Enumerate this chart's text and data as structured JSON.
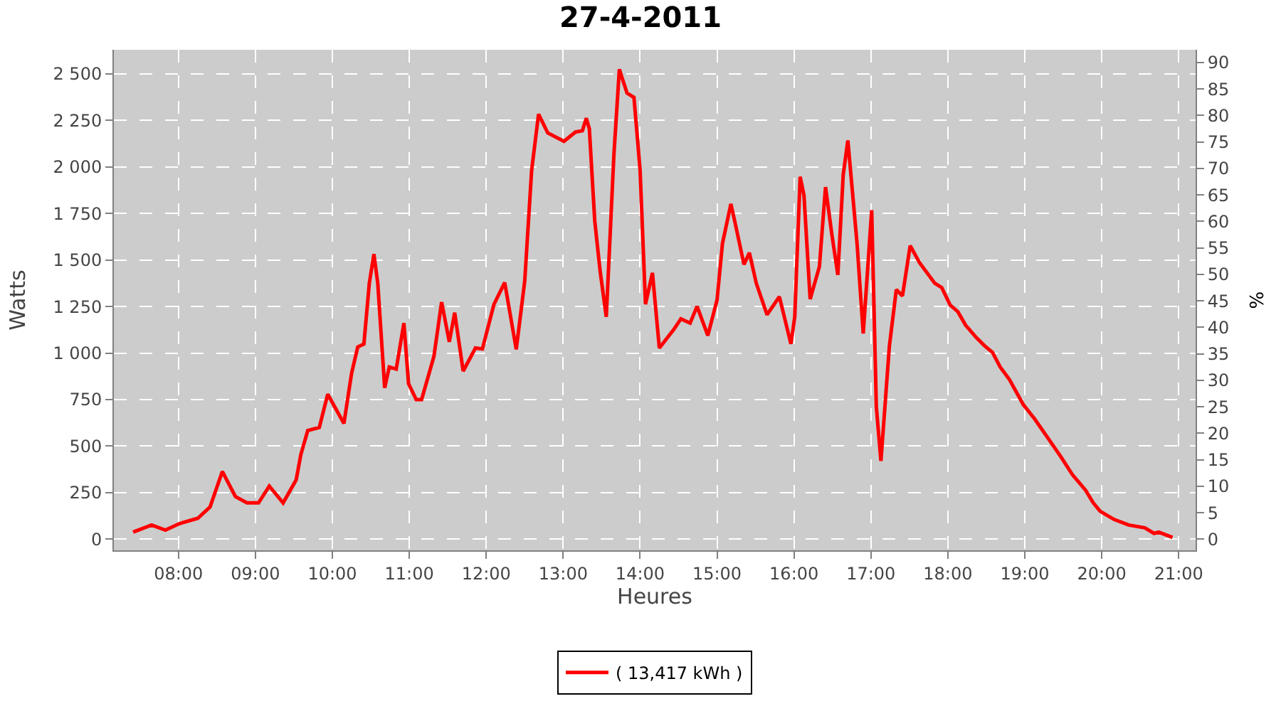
{
  "chart_data": {
    "type": "line",
    "title": "27-4-2011",
    "xlabel": "Heures",
    "ylabel": "Watts",
    "y2label": "%",
    "x": [
      7.41,
      7.65,
      7.83,
      8.01,
      8.25,
      8.41,
      8.57,
      8.74,
      8.89,
      9.04,
      9.18,
      9.36,
      9.53,
      9.59,
      9.68,
      9.83,
      9.94,
      10.15,
      10.25,
      10.33,
      10.41,
      10.48,
      10.54,
      10.59,
      10.68,
      10.74,
      10.83,
      10.93,
      10.99,
      11.09,
      11.16,
      11.32,
      11.42,
      11.52,
      11.59,
      11.7,
      11.86,
      11.95,
      12.1,
      12.24,
      12.39,
      12.5,
      12.59,
      12.68,
      12.8,
      13.01,
      13.16,
      13.25,
      13.3,
      13.34,
      13.41,
      13.48,
      13.56,
      13.66,
      13.73,
      13.83,
      13.92,
      14.0,
      14.07,
      14.16,
      14.25,
      14.44,
      14.53,
      14.65,
      14.74,
      14.88,
      15.0,
      15.07,
      15.18,
      15.24,
      15.35,
      15.42,
      15.51,
      15.65,
      15.81,
      15.96,
      16.01,
      16.08,
      16.13,
      16.21,
      16.33,
      16.41,
      16.49,
      16.57,
      16.64,
      16.7,
      16.82,
      16.9,
      17.01,
      17.07,
      17.13,
      17.24,
      17.33,
      17.41,
      17.51,
      17.63,
      17.83,
      17.92,
      18.03,
      18.13,
      18.23,
      18.37,
      18.48,
      18.58,
      18.68,
      18.8,
      18.98,
      19.13,
      19.32,
      19.47,
      19.62,
      19.79,
      19.89,
      19.98,
      20.16,
      20.35,
      20.56,
      20.68,
      20.74,
      20.92
    ],
    "series": [
      {
        "name": "( 13,417 kWh )",
        "color": "#ff0000",
        "values": [
          38,
          76,
          49,
          83,
          112,
          173,
          364,
          229,
          195,
          195,
          285,
          195,
          319,
          454,
          584,
          600,
          779,
          622,
          892,
          1033,
          1049,
          1375,
          1532,
          1375,
          813,
          925,
          914,
          1161,
          836,
          750,
          750,
          982,
          1274,
          1060,
          1217,
          903,
          1027,
          1022,
          1262,
          1379,
          1020,
          1386,
          1981,
          2284,
          2183,
          2138,
          2188,
          2195,
          2262,
          2206,
          1712,
          1442,
          1195,
          2071,
          2525,
          2397,
          2374,
          1981,
          1262,
          1431,
          1027,
          1128,
          1184,
          1161,
          1251,
          1094,
          1285,
          1588,
          1802,
          1689,
          1476,
          1539,
          1375,
          1206,
          1303,
          1049,
          1195,
          1948,
          1847,
          1290,
          1464,
          1892,
          1644,
          1420,
          1959,
          2143,
          1588,
          1105,
          1768,
          712,
          420,
          1038,
          1341,
          1307,
          1577,
          1487,
          1375,
          1352,
          1258,
          1222,
          1150,
          1083,
          1038,
          1004,
          925,
          858,
          723,
          645,
          532,
          442,
          346,
          263,
          195,
          150,
          106,
          76,
          61,
          31,
          38,
          9
        ]
      }
    ],
    "xlim": [
      7.16,
      21.22
    ],
    "xticks": [
      {
        "value": 8,
        "label": "08:00"
      },
      {
        "value": 9,
        "label": "09:00"
      },
      {
        "value": 10,
        "label": "10:00"
      },
      {
        "value": 11,
        "label": "11:00"
      },
      {
        "value": 12,
        "label": "12:00"
      },
      {
        "value": 13,
        "label": "13:00"
      },
      {
        "value": 14,
        "label": "14:00"
      },
      {
        "value": 15,
        "label": "15:00"
      },
      {
        "value": 16,
        "label": "16:00"
      },
      {
        "value": 17,
        "label": "17:00"
      },
      {
        "value": 18,
        "label": "18:00"
      },
      {
        "value": 19,
        "label": "19:00"
      },
      {
        "value": 20,
        "label": "20:00"
      },
      {
        "value": 21,
        "label": "21:00"
      }
    ],
    "ylim": [
      -60,
      2630
    ],
    "yticks": [
      {
        "value": 0,
        "label": "0"
      },
      {
        "value": 250,
        "label": "250"
      },
      {
        "value": 500,
        "label": "500"
      },
      {
        "value": 750,
        "label": "750"
      },
      {
        "value": 1000,
        "label": "1 000"
      },
      {
        "value": 1250,
        "label": "1 250"
      },
      {
        "value": 1500,
        "label": "1 500"
      },
      {
        "value": 1750,
        "label": "1 750"
      },
      {
        "value": 2000,
        "label": "2 000"
      },
      {
        "value": 2250,
        "label": "2 250"
      },
      {
        "value": 2500,
        "label": "2 500"
      }
    ],
    "y2lim": [
      -2.1,
      92.4
    ],
    "y2ticks": [
      0,
      5,
      10,
      15,
      20,
      25,
      30,
      35,
      40,
      45,
      50,
      55,
      60,
      65,
      70,
      75,
      80,
      85,
      90
    ],
    "grid": true,
    "legend": "bottom",
    "marker": "none",
    "line_style": "solid"
  }
}
